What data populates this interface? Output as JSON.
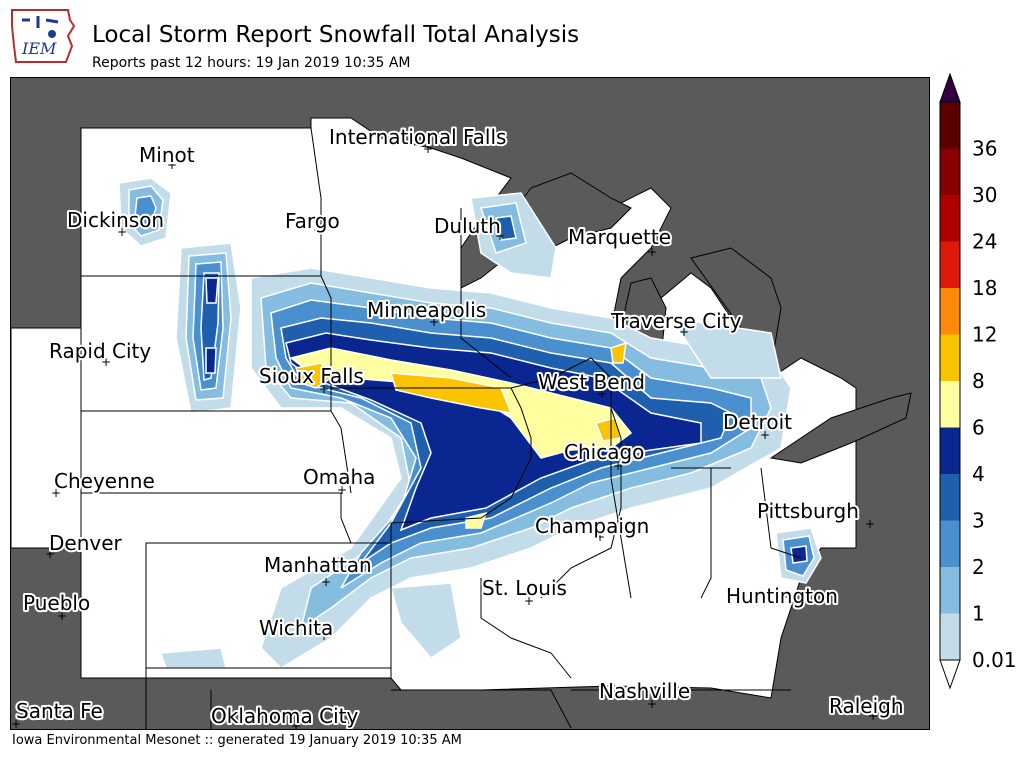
{
  "header": {
    "title": "Local Storm Report Snowfall Total Analysis",
    "subtitle": "Reports past 12 hours: 19 Jan 2019 10:35 AM",
    "logo_text": "IEM"
  },
  "footer": {
    "text": "Iowa Environmental Mesonet :: generated 19 January 2019 10:35 AM"
  },
  "colors": {
    "non_us": "#5a5a5a",
    "border": "#000000",
    "contour_line": "#ffffff"
  },
  "cities": [
    {
      "name": "International Falls"
    },
    {
      "name": "Minot"
    },
    {
      "name": "Dickinson"
    },
    {
      "name": "Fargo"
    },
    {
      "name": "Duluth"
    },
    {
      "name": "Marquette"
    },
    {
      "name": "Minneapolis"
    },
    {
      "name": "Traverse City"
    },
    {
      "name": "Rapid City"
    },
    {
      "name": "Sioux Falls"
    },
    {
      "name": "West Bend"
    },
    {
      "name": "Detroit"
    },
    {
      "name": "Chicago"
    },
    {
      "name": "Cheyenne"
    },
    {
      "name": "Omaha"
    },
    {
      "name": "Pittsburgh"
    },
    {
      "name": "Champaign"
    },
    {
      "name": "Denver"
    },
    {
      "name": "Manhattan"
    },
    {
      "name": "St. Louis"
    },
    {
      "name": "Huntington"
    },
    {
      "name": "Pueblo"
    },
    {
      "name": "Wichita"
    },
    {
      "name": "Nashville"
    },
    {
      "name": "Santa Fe"
    },
    {
      "name": "Oklahoma City"
    },
    {
      "name": "Raleigh"
    }
  ],
  "colorbar": {
    "levels": [
      {
        "label": "0.01",
        "color": "#c2dcea"
      },
      {
        "label": "1",
        "color": "#85bde0"
      },
      {
        "label": "2",
        "color": "#4a90cf"
      },
      {
        "label": "3",
        "color": "#1e5fae"
      },
      {
        "label": "4",
        "color": "#0a2791"
      },
      {
        "label": "6",
        "color": "#ffffa0"
      },
      {
        "label": "8",
        "color": "#fcc400"
      },
      {
        "label": "12",
        "color": "#fd8a0a"
      },
      {
        "label": "18",
        "color": "#dd1a0a"
      },
      {
        "label": "24",
        "color": "#b00000"
      },
      {
        "label": "30",
        "color": "#880000"
      },
      {
        "label": "36",
        "color": "#5a0000"
      }
    ],
    "over_color": "#300040",
    "under_color": "#ffffff"
  }
}
